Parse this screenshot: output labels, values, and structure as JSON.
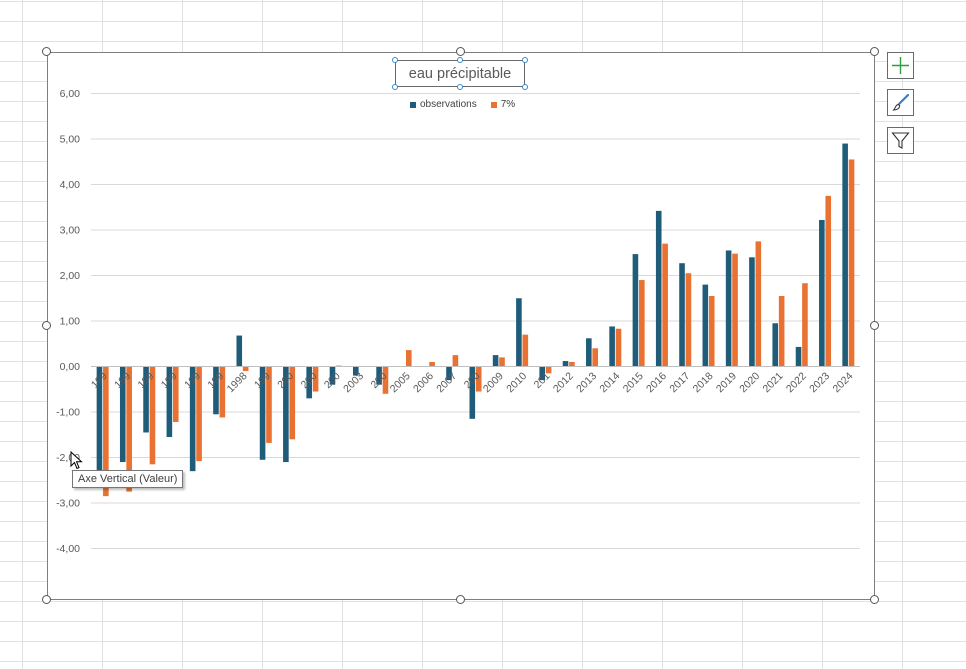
{
  "colors": {
    "observations": "#1f5c7a",
    "pct7": "#e97132"
  },
  "tooltip": "Axe Vertical (Valeur)",
  "chart_data": {
    "type": "bar",
    "title": "eau précipitable",
    "legend": [
      "observations",
      "7%"
    ],
    "legend_position": "top",
    "grid": true,
    "ylim": [
      -4.5,
      6.5
    ],
    "yticks": [
      "6,00",
      "5,00",
      "4,00",
      "3,00",
      "2,00",
      "1,00",
      "0,00",
      "-1,00",
      "-2,00",
      "-3,00",
      "-4,00"
    ],
    "ytick_values": [
      6,
      5,
      4,
      3,
      2,
      1,
      0,
      -1,
      -2,
      -3,
      -4
    ],
    "categories": [
      "1992",
      "1993",
      "1994",
      "1995",
      "1996",
      "1997",
      "1998",
      "1999",
      "2000",
      "2001",
      "2002",
      "2003",
      "2004",
      "2005",
      "2006",
      "2007",
      "2008",
      "2009",
      "2010",
      "2011",
      "2012",
      "2013",
      "2014",
      "2015",
      "2016",
      "2017",
      "2018",
      "2019",
      "2020",
      "2021",
      "2022",
      "2023",
      "2024"
    ],
    "category_labels": [
      "199",
      "199",
      "199",
      "199",
      "199",
      "199",
      "1998",
      "199",
      "200",
      "200",
      "200",
      "2003",
      "200",
      "2005",
      "2006",
      "2007",
      "200",
      "2009",
      "2010",
      "201",
      "2012",
      "2013",
      "2014",
      "2015",
      "2016",
      "2017",
      "2018",
      "2019",
      "2020",
      "2021",
      "2022",
      "2023",
      "2024"
    ],
    "series": [
      {
        "name": "observations",
        "values": [
          -2.3,
          -2.1,
          -1.45,
          -1.55,
          -2.3,
          -1.05,
          0.68,
          -2.05,
          -2.1,
          -0.7,
          -0.4,
          -0.2,
          -0.4,
          0.0,
          0.0,
          -0.3,
          -1.15,
          0.25,
          1.5,
          -0.3,
          0.12,
          0.62,
          0.88,
          2.47,
          3.42,
          2.27,
          1.8,
          2.55,
          2.4,
          0.95,
          0.43,
          3.22,
          4.9
        ]
      },
      {
        "name": "7%",
        "values": [
          -2.85,
          -2.75,
          -2.15,
          -1.22,
          -2.08,
          -1.12,
          -0.1,
          -1.68,
          -1.6,
          -0.55,
          0.02,
          0.0,
          -0.6,
          0.36,
          0.1,
          0.25,
          -0.55,
          0.2,
          0.7,
          -0.15,
          0.1,
          0.4,
          0.83,
          1.9,
          2.7,
          2.05,
          1.55,
          2.48,
          2.75,
          1.55,
          1.83,
          3.75,
          4.55
        ]
      }
    ]
  }
}
